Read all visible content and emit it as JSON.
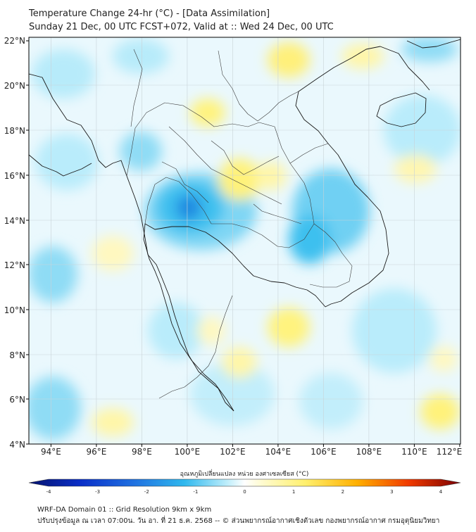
{
  "header": {
    "title_line1": "Temperature Change 24-hr (°C) - [Data Assimilation]",
    "title_line2": "Sunday 21 Dec, 00 UTC FCST+072, Valid at :: Wed 24 Dec, 00 UTC"
  },
  "map": {
    "lat_range": [
      4,
      22
    ],
    "lon_range": [
      93,
      112
    ],
    "lat_ticks": [
      "22°N",
      "20°N",
      "18°N",
      "16°N",
      "14°N",
      "12°N",
      "10°N",
      "8°N",
      "6°N",
      "4°N"
    ],
    "lon_ticks": [
      "94°E",
      "96°E",
      "98°E",
      "100°E",
      "102°E",
      "104°E",
      "106°E",
      "108°E",
      "110°E",
      "112°E"
    ],
    "colors": {
      "cool_strong": "#1f7fe0",
      "cool": "#35c5f0",
      "cool_light": "#b9ecfa",
      "warm": "#fff27a",
      "warm_light": "#fffacd",
      "base": "#eef9fd"
    }
  },
  "colorbar": {
    "label": "อุณหภูมิเปลี่ยนแปลง หน่วย องศาเซลเซียส (°C)",
    "ticks": [
      "-4",
      "-3",
      "-2",
      "-1",
      "0",
      "1",
      "2",
      "3",
      "4"
    ],
    "min": -4,
    "max": 4
  },
  "footer": {
    "line1": "WRF-DA Domain 01 :: Grid Resolution 9km x 9km",
    "line2": "ปรับปรุงข้อมูล ณ เวลา 07:00น. วัน อา. ที่ 21 ธ.ค. 2568 -- © ส่วนพยากรณ์อากาศเชิงตัวเลข กองพยากรณ์อากาศ กรมอุตุนิยมวิทยา"
  }
}
